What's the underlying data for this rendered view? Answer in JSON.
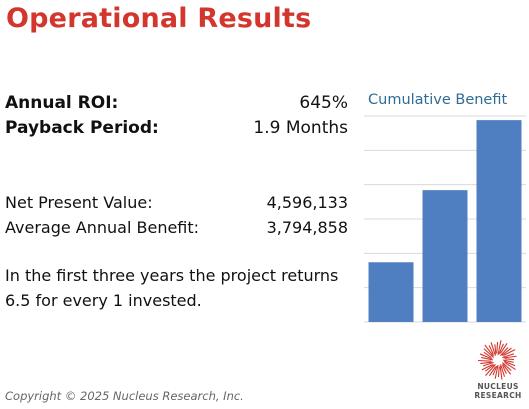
{
  "title": "Operational Results",
  "metrics": {
    "roi": {
      "label": "Annual ROI:",
      "value": "645%"
    },
    "payback": {
      "label": "Payback Period:",
      "value": "1.9 Months"
    },
    "npv": {
      "label": "Net Present Value:",
      "value": "4,596,133"
    },
    "avg_benefit": {
      "label": "Average Annual Benefit:",
      "value": "3,794,858"
    }
  },
  "summary": "In the first three years the project returns 6.5 for every 1 invested.",
  "chart_data": {
    "type": "bar",
    "title": "Cumulative Benefit",
    "categories": [
      "",
      "",
      ""
    ],
    "values": [
      1.45,
      3.2,
      4.9
    ],
    "ylim": [
      0,
      5
    ],
    "grid": true,
    "colors": {
      "bar": "#4f7fc0",
      "grid": "#d9d9d9",
      "title": "#2f6b94"
    }
  },
  "footer": {
    "copyright": "Copyright © 2025 Nucleus Research, Inc.",
    "logo_line1": "NUCLEUS",
    "logo_line2": "RESEARCH"
  },
  "colors": {
    "title": "#d3362d",
    "logo": "#d3362d"
  }
}
